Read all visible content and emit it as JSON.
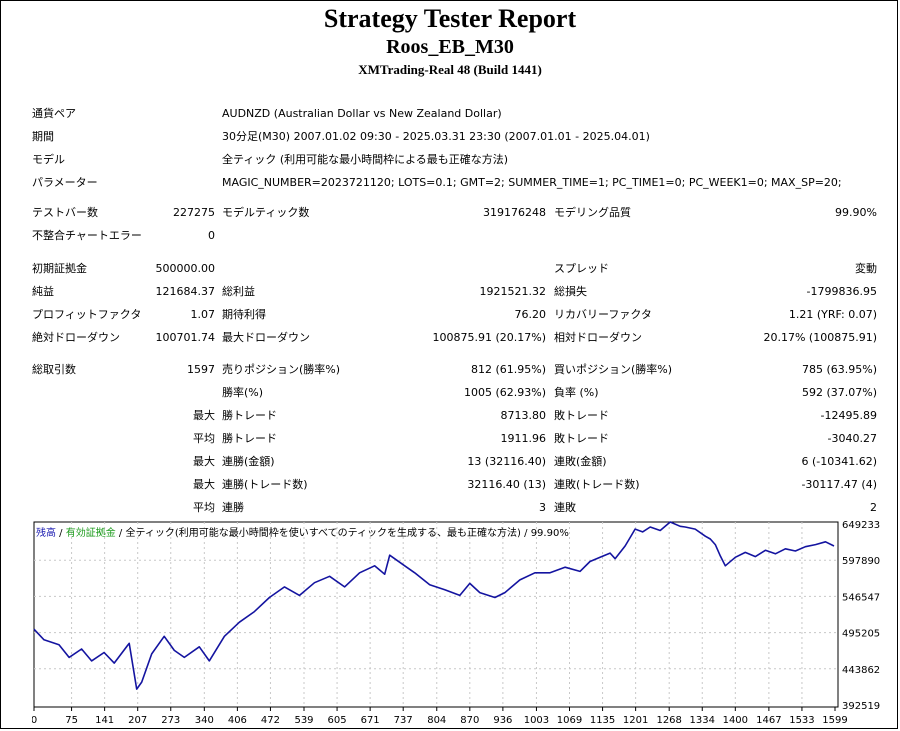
{
  "header": {
    "title": "Strategy Tester Report",
    "subtitle": "Roos_EB_M30",
    "server": "XMTrading-Real 48 (Build 1441)"
  },
  "info": {
    "symbol_label": "通貨ペア",
    "symbol_value": "AUDNZD (Australian Dollar vs New Zealand Dollar)",
    "period_label": "期間",
    "period_value": "30分足(M30) 2007.01.02 09:30 - 2025.03.31 23:30 (2007.01.01 - 2025.04.01)",
    "model_label": "モデル",
    "model_value": "全ティック (利用可能な最小時間枠による最も正確な方法)",
    "params_label": "パラメーター",
    "params_value": "MAGIC_NUMBER=2023721120; LOTS=0.1; GMT=2; SUMMER_TIME=1; PC_TIME1=0; PC_WEEK1=0; MAX_SP=20;"
  },
  "stats": {
    "bars_label": "テストバー数",
    "bars_value": "227275",
    "ticks_label": "モデルティック数",
    "ticks_value": "319176248",
    "quality_label": "モデリング品質",
    "quality_value": "99.90%",
    "errors_label": "不整合チャートエラー",
    "errors_value": "0",
    "deposit_label": "初期証拠金",
    "deposit_value": "500000.00",
    "spread_label": "スプレッド",
    "spread_value": "変動",
    "net_label": "純益",
    "net_value": "121684.37",
    "gross_profit_label": "総利益",
    "gross_profit_value": "1921521.32",
    "gross_loss_label": "総損失",
    "gross_loss_value": "-1799836.95",
    "pf_label": "プロフィットファクタ",
    "pf_value": "1.07",
    "expected_label": "期待利得",
    "expected_value": "76.20",
    "recovery_label": "リカバリーファクタ",
    "recovery_value": "1.21 (YRF: 0.07)",
    "abs_dd_label": "絶対ドローダウン",
    "abs_dd_value": "100701.74",
    "max_dd_label": "最大ドローダウン",
    "max_dd_value": "100875.91 (20.17%)",
    "rel_dd_label": "相対ドローダウン",
    "rel_dd_value": "20.17% (100875.91)",
    "trades_label": "総取引数",
    "trades_value": "1597",
    "short_label": "売りポジション(勝率%)",
    "short_value": "812 (61.95%)",
    "long_label": "買いポジション(勝率%)",
    "long_value": "785 (63.95%)",
    "win_rate_label": "勝率(%)",
    "win_rate_value": "1005 (62.93%)",
    "loss_rate_label": "負率 (%)",
    "loss_rate_value": "592 (37.07%)",
    "largest_label": "最大",
    "largest_win_label": "勝トレード",
    "largest_win_value": "8713.80",
    "largest_loss_label": "敗トレード",
    "largest_loss_value": "-12495.89",
    "average_label": "平均",
    "avg_win_label": "勝トレード",
    "avg_win_value": "1911.96",
    "avg_loss_label": "敗トレード",
    "avg_loss_value": "-3040.27",
    "max_label_1": "最大",
    "max_cons_wins_label": "連勝(金額)",
    "max_cons_wins_value": "13 (32116.40)",
    "max_cons_losses_label": "連敗(金額)",
    "max_cons_losses_value": "6 (-10341.62)",
    "max_label_2": "最大",
    "max_cons_profit_label": "連勝(トレード数)",
    "max_cons_profit_value": "32116.40 (13)",
    "max_cons_loss_label": "連敗(トレード数)",
    "max_cons_loss_value": "-30117.47 (4)",
    "avg_label_2": "平均",
    "avg_cons_wins_label": "連勝",
    "avg_cons_wins_value": "3",
    "avg_cons_losses_label": "連敗",
    "avg_cons_losses_value": "2"
  },
  "legend": {
    "balance": "残高",
    "sep": " / ",
    "equity": "有効証拠金",
    "rest": " / 全ティック(利用可能な最小時間枠を使いすべてのティックを生成する、最も正確な方法) / 99.90%"
  },
  "colors": {
    "balance_line": "#1414a0",
    "grid": "#c8c8c8",
    "frame": "#000000"
  },
  "chart_data": {
    "type": "line",
    "x_ticks": [
      "0",
      "75",
      "141",
      "207",
      "273",
      "340",
      "406",
      "472",
      "539",
      "605",
      "671",
      "737",
      "804",
      "870",
      "936",
      "1003",
      "1069",
      "1135",
      "1201",
      "1268",
      "1334",
      "1400",
      "1467",
      "1533",
      "1599"
    ],
    "y_ticks": [
      "649233",
      "597890",
      "546547",
      "495205",
      "443862",
      "392519"
    ],
    "xlim": [
      0,
      1597
    ],
    "ylim": [
      392519,
      649233
    ],
    "series": [
      {
        "x": [
          0,
          20,
          50,
          70,
          95,
          115,
          140,
          160,
          190,
          205,
          215,
          235,
          260,
          280,
          300,
          330,
          350,
          380,
          410,
          440,
          470,
          500,
          530,
          560,
          590,
          620,
          650,
          680,
          700,
          710,
          740,
          760,
          790,
          820,
          850,
          870,
          890,
          920,
          940,
          970,
          1000,
          1030,
          1060,
          1090,
          1110,
          1130,
          1150,
          1160,
          1180,
          1190,
          1200,
          1215,
          1230,
          1250,
          1270,
          1290,
          1300,
          1320,
          1340,
          1350,
          1360,
          1370,
          1380,
          1400,
          1420,
          1440,
          1460,
          1480,
          1500,
          1520,
          1540,
          1560,
          1580,
          1597
        ],
        "values": [
          500000,
          485000,
          478000,
          460000,
          472000,
          455000,
          467000,
          452000,
          480000,
          415000,
          425000,
          465000,
          490000,
          470000,
          460000,
          475000,
          455000,
          490000,
          510000,
          525000,
          545000,
          560000,
          548000,
          566000,
          575000,
          560000,
          580000,
          590000,
          578000,
          605000,
          590000,
          580000,
          563000,
          556000,
          548000,
          565000,
          552000,
          545000,
          552000,
          570000,
          580000,
          580000,
          588000,
          582000,
          596000,
          602000,
          608000,
          600000,
          618000,
          630000,
          642000,
          638000,
          645000,
          640000,
          652000,
          646000,
          645000,
          642000,
          632000,
          628000,
          620000,
          604000,
          590000,
          602000,
          609000,
          603000,
          612000,
          607000,
          614000,
          611000,
          617000,
          620000,
          624000,
          618000
        ]
      }
    ]
  }
}
